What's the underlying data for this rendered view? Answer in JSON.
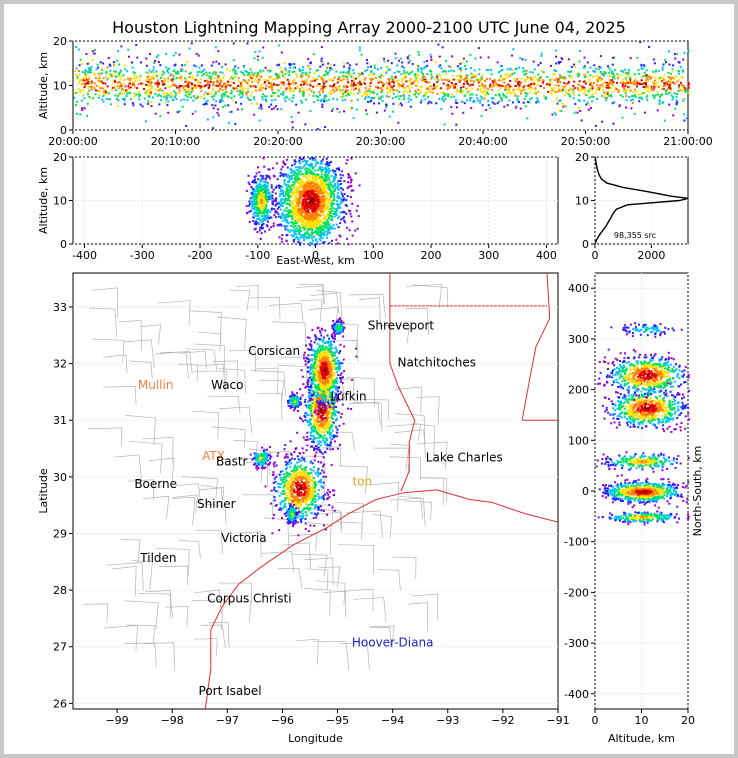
{
  "title": "Houston Lightning Mapping Array 2000-2100 UTC June 04, 2025",
  "chart_data": [
    {
      "panel": "time-altitude",
      "type": "scatter",
      "xlabel": "",
      "ylabel": "Altitude, km",
      "xticks": [
        "20:00:00",
        "20:10:00",
        "20:20:00",
        "20:30:00",
        "20:40:00",
        "20:50:00",
        "21:00:00"
      ],
      "yticks": [
        0,
        10,
        20
      ],
      "xlim_minutes": [
        0,
        60
      ],
      "ylim": [
        0,
        20
      ],
      "density_bands": [
        {
          "t0": 0,
          "t1": 60,
          "alt_center": 10.5,
          "alt_spread": 2.5,
          "intensity": "high"
        }
      ]
    },
    {
      "panel": "east-west-altitude",
      "type": "scatter",
      "xlabel": "East-West, km",
      "ylabel": "Altitude, km",
      "xticks": [
        -400,
        -300,
        -200,
        -100,
        0,
        100,
        200,
        300,
        400
      ],
      "yticks": [
        0,
        10,
        20
      ],
      "xlim": [
        -420,
        420
      ],
      "ylim": [
        0,
        20
      ],
      "clusters": [
        {
          "x": -10,
          "alt": 10,
          "sx": 28,
          "salt": 5,
          "intensity": "high"
        },
        {
          "x": -95,
          "alt": 10,
          "sx": 10,
          "salt": 3,
          "intensity": "medium"
        }
      ]
    },
    {
      "panel": "altitude-histogram",
      "type": "line",
      "xticks": [
        0,
        2000
      ],
      "yticks": [
        0,
        10,
        20
      ],
      "xlim": [
        0,
        3300
      ],
      "ylim": [
        0,
        20
      ],
      "annotation": "98,355 src",
      "profile": [
        [
          0,
          0
        ],
        [
          60,
          1
        ],
        [
          150,
          2
        ],
        [
          260,
          3
        ],
        [
          380,
          4
        ],
        [
          470,
          5
        ],
        [
          560,
          6
        ],
        [
          640,
          7
        ],
        [
          760,
          8
        ],
        [
          1150,
          9
        ],
        [
          3000,
          10
        ],
        [
          3300,
          10.5
        ],
        [
          2700,
          11
        ],
        [
          1900,
          12
        ],
        [
          1000,
          13
        ],
        [
          420,
          14
        ],
        [
          220,
          15
        ],
        [
          140,
          16
        ],
        [
          90,
          17
        ],
        [
          55,
          18
        ],
        [
          30,
          19
        ],
        [
          15,
          20
        ]
      ]
    },
    {
      "panel": "plan-view-map",
      "type": "scatter",
      "xlabel": "Longitude",
      "ylabel": "Latitude",
      "xticks": [
        -99,
        -98,
        -97,
        -96,
        -95,
        -94,
        -93,
        -92,
        -91
      ],
      "yticks": [
        26,
        27,
        28,
        29,
        30,
        31,
        32,
        33
      ],
      "xlim": [
        -99.8,
        -91
      ],
      "ylim": [
        25.9,
        33.6
      ],
      "clusters": [
        {
          "lon": -95.3,
          "lat": 31.2,
          "slon": 0.15,
          "slat": 0.35,
          "intensity": "high"
        },
        {
          "lon": -95.25,
          "lat": 31.9,
          "slon": 0.15,
          "slat": 0.3,
          "intensity": "high"
        },
        {
          "lon": -95.7,
          "lat": 29.8,
          "slon": 0.22,
          "slat": 0.28,
          "intensity": "high"
        },
        {
          "lon": -96.4,
          "lat": 30.35,
          "slon": 0.08,
          "slat": 0.08,
          "intensity": "medium"
        },
        {
          "lon": -95.0,
          "lat": 32.65,
          "slon": 0.05,
          "slat": 0.06,
          "intensity": "medium"
        },
        {
          "lon": -95.85,
          "lat": 29.35,
          "slon": 0.05,
          "slat": 0.08,
          "intensity": "medium"
        },
        {
          "lon": -95.8,
          "lat": 31.35,
          "slon": 0.06,
          "slat": 0.06,
          "intensity": "medium"
        }
      ]
    },
    {
      "panel": "north-south-altitude",
      "type": "scatter",
      "xlabel": "Altitude, km",
      "ylabel": "North-South, km",
      "xticks": [
        0,
        10,
        20
      ],
      "yticks": [
        -400,
        -300,
        -200,
        -100,
        0,
        100,
        200,
        300,
        400
      ],
      "xlim": [
        0,
        20
      ],
      "ylim": [
        -430,
        430
      ],
      "clusters": [
        {
          "ns": 0,
          "alt": 10,
          "sns": 10,
          "salt": 4,
          "intensity": "high"
        },
        {
          "ns": -50,
          "alt": 10,
          "sns": 5,
          "salt": 4,
          "intensity": "medium"
        },
        {
          "ns": 60,
          "alt": 10,
          "sns": 8,
          "salt": 4,
          "intensity": "medium"
        },
        {
          "ns": 165,
          "alt": 11,
          "sns": 18,
          "salt": 4,
          "intensity": "high"
        },
        {
          "ns": 230,
          "alt": 11,
          "sns": 18,
          "salt": 4,
          "intensity": "high"
        },
        {
          "ns": 320,
          "alt": 11,
          "sns": 6,
          "salt": 3,
          "intensity": "low"
        }
      ]
    }
  ],
  "map_labels": [
    {
      "text": "Shreveport",
      "lon": -93.85,
      "lat": 32.6,
      "color": "#000000"
    },
    {
      "text": "Corsican",
      "lon": -96.15,
      "lat": 32.15,
      "color": "#000000"
    },
    {
      "text": "Natchitoches",
      "lon": -93.2,
      "lat": 31.95,
      "color": "#000000"
    },
    {
      "text": "Mullin",
      "lon": -98.3,
      "lat": 31.55,
      "color": "#f08040"
    },
    {
      "text": "Waco",
      "lon": -97.0,
      "lat": 31.55,
      "color": "#000000"
    },
    {
      "text": "Lufkin",
      "lon": -94.8,
      "lat": 31.35,
      "color": "#000000"
    },
    {
      "text": "ATX",
      "lon": -97.25,
      "lat": 30.3,
      "color": "#f08040"
    },
    {
      "text": "Bastr",
      "lon": -96.92,
      "lat": 30.2,
      "color": "#000000"
    },
    {
      "text": "Lake Charles",
      "lon": -92.7,
      "lat": 30.27,
      "color": "#000000"
    },
    {
      "text": "Boerne",
      "lon": -98.3,
      "lat": 29.8,
      "color": "#000000"
    },
    {
      "text": "Shiner",
      "lon": -97.2,
      "lat": 29.45,
      "color": "#000000"
    },
    {
      "text": "Victoria",
      "lon": -96.7,
      "lat": 28.85,
      "color": "#000000"
    },
    {
      "text": "Tilden",
      "lon": -98.25,
      "lat": 28.5,
      "color": "#000000"
    },
    {
      "text": "Corpus Christi",
      "lon": -96.6,
      "lat": 27.78,
      "color": "#000000"
    },
    {
      "text": "Hoover-Diana",
      "lon": -94.0,
      "lat": 27.0,
      "color": "#2020d0"
    },
    {
      "text": "Port Isabel",
      "lon": -96.95,
      "lat": 26.15,
      "color": "#000000"
    },
    {
      "text": "ton",
      "lon": -94.55,
      "lat": 29.85,
      "color": "#e8a020"
    }
  ],
  "colors": {
    "state_border": "#e03030",
    "county_border": "#b4b4b4",
    "density_scale": [
      "#ffffff",
      "#9000d0",
      "#2020ff",
      "#00c0ff",
      "#00e060",
      "#ffe000",
      "#ff8000",
      "#e00000",
      "#800000"
    ]
  }
}
